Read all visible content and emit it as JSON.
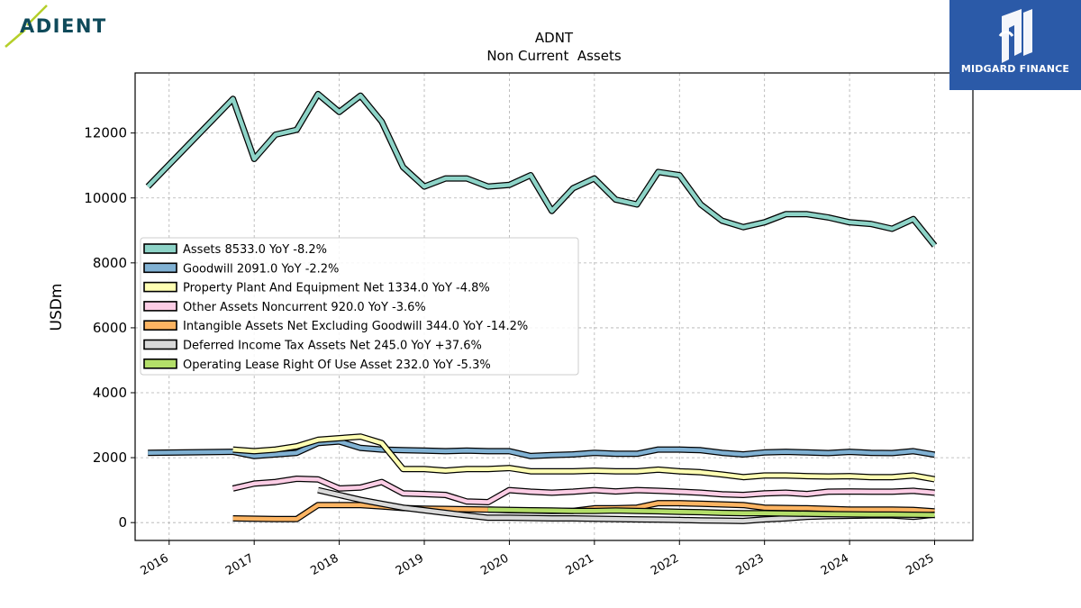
{
  "brand": {
    "left_logo_text": "ADIENT",
    "right_logo_text": "MIDGARD FINANCE",
    "right_bg_color": "#2b5aa8"
  },
  "chart_data": {
    "type": "line",
    "title": "ADNT",
    "subtitle": "Non Current  Assets",
    "xlabel": "",
    "ylabel": "USDm",
    "xlim": [
      2015.6,
      2025.45
    ],
    "ylim": [
      -550,
      13850
    ],
    "x_ticks": [
      2016,
      2017,
      2018,
      2019,
      2020,
      2021,
      2022,
      2023,
      2024,
      2025
    ],
    "x_tick_labels": [
      "2016",
      "2017",
      "2018",
      "2019",
      "2020",
      "2021",
      "2022",
      "2023",
      "2024",
      "2025"
    ],
    "y_ticks": [
      0,
      2000,
      4000,
      6000,
      8000,
      10000,
      12000
    ],
    "y_tick_labels": [
      "0",
      "2000",
      "4000",
      "6000",
      "8000",
      "10000",
      "12000"
    ],
    "grid": true,
    "legend_position": "center-left",
    "series": [
      {
        "name": "Assets  8533.0 YoY -8.2%",
        "color": "#8dd3c7",
        "x": [
          2015.75,
          2016.75,
          2017.0,
          2017.25,
          2017.5,
          2017.75,
          2018.0,
          2018.25,
          2018.5,
          2018.75,
          2019.0,
          2019.25,
          2019.5,
          2019.75,
          2020.0,
          2020.25,
          2020.5,
          2020.75,
          2021.0,
          2021.25,
          2021.5,
          2021.75,
          2022.0,
          2022.25,
          2022.5,
          2022.75,
          2023.0,
          2023.25,
          2023.5,
          2023.75,
          2024.0,
          2024.25,
          2024.5,
          2024.75,
          2025.0
        ],
        "values": [
          10350,
          13050,
          11200,
          11950,
          12100,
          13200,
          12650,
          13150,
          12350,
          10950,
          10350,
          10600,
          10600,
          10350,
          10400,
          10700,
          9600,
          10300,
          10600,
          9950,
          9800,
          10800,
          10700,
          9800,
          9300,
          9100,
          9250,
          9500,
          9500,
          9400,
          9250,
          9200,
          9050,
          9350,
          8533
        ]
      },
      {
        "name": "Goodwill  2091.0 YoY -2.2%",
        "color": "#80b1d3",
        "x": [
          2015.75,
          2016.75,
          2017.0,
          2017.25,
          2017.5,
          2017.75,
          2018.0,
          2018.25,
          2018.5,
          2018.75,
          2019.0,
          2019.25,
          2019.5,
          2019.75,
          2020.0,
          2020.25,
          2020.5,
          2020.75,
          2021.0,
          2021.25,
          2021.5,
          2021.75,
          2022.0,
          2022.25,
          2022.5,
          2022.75,
          2023.0,
          2023.25,
          2023.5,
          2023.75,
          2024.0,
          2024.25,
          2024.5,
          2024.75,
          2025.0
        ],
        "values": [
          2150,
          2180,
          2050,
          2100,
          2150,
          2450,
          2500,
          2300,
          2250,
          2230,
          2220,
          2200,
          2220,
          2200,
          2200,
          2050,
          2080,
          2100,
          2150,
          2120,
          2120,
          2250,
          2250,
          2230,
          2150,
          2100,
          2160,
          2180,
          2160,
          2140,
          2180,
          2150,
          2140,
          2200,
          2091
        ]
      },
      {
        "name": "Property Plant And Equipment Net  1334.0 YoY -4.8%",
        "color": "#ffffb3",
        "x": [
          2016.75,
          2017.0,
          2017.25,
          2017.5,
          2017.75,
          2018.0,
          2018.25,
          2018.5,
          2018.75,
          2019.0,
          2019.25,
          2019.5,
          2019.75,
          2020.0,
          2020.25,
          2020.5,
          2020.75,
          2021.0,
          2021.25,
          2021.5,
          2021.75,
          2022.0,
          2022.25,
          2022.5,
          2022.75,
          2023.0,
          2023.25,
          2023.5,
          2023.75,
          2024.0,
          2024.25,
          2024.5,
          2024.75,
          2025.0
        ],
        "values": [
          2250,
          2200,
          2250,
          2350,
          2550,
          2600,
          2650,
          2450,
          1650,
          1650,
          1600,
          1650,
          1650,
          1680,
          1580,
          1580,
          1580,
          1600,
          1580,
          1580,
          1630,
          1580,
          1550,
          1480,
          1400,
          1450,
          1450,
          1430,
          1420,
          1430,
          1400,
          1400,
          1450,
          1334
        ]
      },
      {
        "name": "Other Assets Noncurrent  920.0 YoY -3.6%",
        "color": "#fccde5",
        "x": [
          2016.75,
          2017.0,
          2017.25,
          2017.5,
          2017.75,
          2018.0,
          2018.25,
          2018.5,
          2018.75,
          2019.0,
          2019.25,
          2019.5,
          2019.75,
          2020.0,
          2020.25,
          2020.5,
          2020.75,
          2021.0,
          2021.25,
          2021.5,
          2021.75,
          2022.0,
          2022.25,
          2022.5,
          2022.75,
          2023.0,
          2023.25,
          2023.5,
          2023.75,
          2024.0,
          2024.25,
          2024.5,
          2024.75,
          2025.0
        ],
        "values": [
          1050,
          1200,
          1250,
          1350,
          1330,
          1050,
          1080,
          1250,
          900,
          880,
          850,
          650,
          630,
          1000,
          950,
          920,
          950,
          1000,
          960,
          1000,
          980,
          950,
          920,
          870,
          850,
          900,
          920,
          880,
          950,
          960,
          950,
          950,
          980,
          920
        ]
      },
      {
        "name": "Intangible Assets Net Excluding Goodwill  344.0 YoY -14.2%",
        "color": "#fdb462",
        "x": [
          2016.75,
          2017.0,
          2017.25,
          2017.5,
          2017.75,
          2018.0,
          2018.25,
          2018.5,
          2018.75,
          2019.0,
          2019.25,
          2019.5,
          2019.75,
          2020.0,
          2020.25,
          2020.5,
          2020.75,
          2021.0,
          2021.25,
          2021.5,
          2021.75,
          2022.0,
          2022.25,
          2022.5,
          2022.75,
          2023.0,
          2023.25,
          2023.5,
          2023.75,
          2024.0,
          2024.25,
          2024.5,
          2024.75,
          2025.0
        ],
        "values": [
          130,
          120,
          110,
          110,
          540,
          540,
          540,
          500,
          450,
          430,
          420,
          410,
          400,
          380,
          370,
          360,
          360,
          440,
          440,
          460,
          600,
          600,
          580,
          560,
          540,
          460,
          450,
          440,
          420,
          400,
          400,
          400,
          390,
          344
        ]
      },
      {
        "name": "Deferred Income Tax Assets Net  245.0 YoY +37.6%",
        "color": "#d9d9d9",
        "x": [
          2017.75,
          2018.0,
          2018.25,
          2018.5,
          2018.75,
          2019.0,
          2019.25,
          2019.5,
          2019.75,
          2020.0,
          2020.25,
          2020.5,
          2020.75,
          2021.0,
          2021.25,
          2021.5,
          2021.75,
          2022.0,
          2022.25,
          2022.5,
          2022.75,
          2023.0,
          2023.25,
          2023.5,
          2023.75,
          2024.0,
          2024.25,
          2024.5,
          2024.75,
          2025.0
        ],
        "values": [
          1000,
          850,
          700,
          580,
          460,
          380,
          300,
          220,
          150,
          150,
          140,
          130,
          130,
          120,
          110,
          100,
          90,
          80,
          70,
          60,
          50,
          100,
          130,
          180,
          200,
          210,
          220,
          220,
          178,
          245
        ]
      },
      {
        "name": "Operating Lease Right Of Use Asset  232.0 YoY -5.3%",
        "color": "#b3de69",
        "x": [
          2019.75,
          2020.0,
          2020.25,
          2020.5,
          2020.75,
          2021.0,
          2021.25,
          2021.5,
          2021.75,
          2022.0,
          2022.25,
          2022.5,
          2022.75,
          2023.0,
          2023.25,
          2023.5,
          2023.75,
          2024.0,
          2024.25,
          2024.5,
          2024.75,
          2025.0
        ],
        "values": [
          400,
          390,
          380,
          370,
          360,
          360,
          370,
          360,
          350,
          330,
          320,
          300,
          290,
          290,
          280,
          270,
          260,
          255,
          250,
          245,
          240,
          232
        ]
      }
    ]
  }
}
